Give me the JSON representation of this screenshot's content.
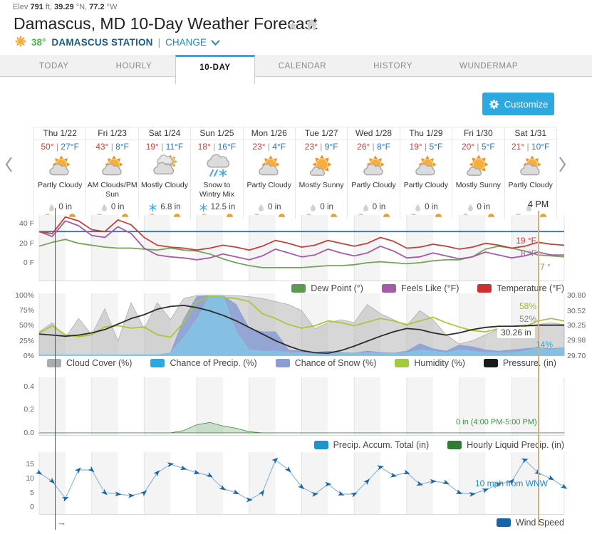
{
  "header": {
    "elev_label": "Elev",
    "elev_value": "791",
    "elev_unit": "ft,",
    "lat_value": "39.29",
    "lat_unit": "°N,",
    "lon_value": "77.2",
    "lon_unit": "°W",
    "title": "Damascus, MD 10-Day Weather Forecast",
    "station": {
      "temp": "38°",
      "name": "DAMASCUS STATION",
      "divider": "|",
      "change_label": "CHANGE"
    }
  },
  "tabs": [
    {
      "label": "TODAY",
      "active": false
    },
    {
      "label": "HOURLY",
      "active": false
    },
    {
      "label": "10-DAY",
      "active": true
    },
    {
      "label": "CALENDAR",
      "active": false
    },
    {
      "label": "HISTORY",
      "active": false
    },
    {
      "label": "WUNDERMAP",
      "active": false
    }
  ],
  "customize": {
    "label": "Customize"
  },
  "forecast_days": [
    {
      "day": "Thu 1/22",
      "high": "50°",
      "low": "27°F",
      "condition": "Partly Cloudy",
      "icon": "partly-cloudy",
      "precip_icon": "drop",
      "precip": "0 in"
    },
    {
      "day": "Fri 1/23",
      "high": "43°",
      "low": "8°F",
      "condition": "AM Clouds/PM Sun",
      "icon": "partly-cloudy",
      "precip_icon": "drop",
      "precip": "0 in"
    },
    {
      "day": "Sat 1/24",
      "high": "19°",
      "low": "11°F",
      "condition": "Mostly Cloudy",
      "icon": "mostly-cloudy",
      "precip_icon": "snow",
      "precip": "6.8 in"
    },
    {
      "day": "Sun 1/25",
      "high": "18°",
      "low": "16°F",
      "condition": "Snow to Wintry Mix",
      "icon": "snow-wintry",
      "precip_icon": "snow",
      "precip": "12.5 in"
    },
    {
      "day": "Mon 1/26",
      "high": "23°",
      "low": "4°F",
      "condition": "Partly Cloudy",
      "icon": "partly-cloudy",
      "precip_icon": "drop",
      "precip": "0 in"
    },
    {
      "day": "Tue 1/27",
      "high": "23°",
      "low": "9°F",
      "condition": "Mostly Sunny",
      "icon": "mostly-sunny",
      "precip_icon": "drop",
      "precip": "0 in"
    },
    {
      "day": "Wed 1/28",
      "high": "26°",
      "low": "8°F",
      "condition": "Partly Cloudy",
      "icon": "partly-cloudy",
      "precip_icon": "drop",
      "precip": "0 in"
    },
    {
      "day": "Thu 1/29",
      "high": "19°",
      "low": "5°F",
      "condition": "Partly Cloudy",
      "icon": "partly-cloudy",
      "precip_icon": "drop",
      "precip": "0 in"
    },
    {
      "day": "Fri 1/30",
      "high": "20°",
      "low": "5°F",
      "condition": "Mostly Sunny",
      "icon": "mostly-sunny",
      "precip_icon": "drop",
      "precip": "0 in"
    },
    {
      "day": "Sat 1/31",
      "high": "21°",
      "low": "10°F",
      "condition": "Partly Cloudy",
      "icon": "partly-cloudy",
      "precip_icon": "drop",
      "precip": ""
    }
  ],
  "cursor": {
    "time": "4 PM",
    "temperature": "19 °F",
    "feels_like": "8 °F",
    "dew_point": "7 °",
    "humidity": "58%",
    "cloud_cover": "52%",
    "pressure": "30.26 in",
    "chance_snow": "14%",
    "hourly_precip": "0 in (4:00 PM-5:00 PM)",
    "wind": "10 mph from WNW",
    "bottom_arrow": "→"
  },
  "chart_data": [
    {
      "id": "temperature",
      "type": "line",
      "x_step": 0.25,
      "ylim": [
        -19,
        49
      ],
      "yticks": [
        {
          "v": 40,
          "label": "40 F"
        },
        {
          "v": 20,
          "label": "20 F"
        },
        {
          "v": 0,
          "label": "0 F"
        }
      ],
      "reference_line": 32,
      "series": [
        {
          "name": "Dew Point (°)",
          "color": "#74A45E",
          "values": [
            17,
            21,
            24,
            20,
            18,
            16,
            15,
            15,
            14,
            13,
            15,
            13,
            12,
            9,
            4,
            0,
            -3,
            -5,
            -5,
            -5,
            -5,
            -4,
            -3,
            -3,
            -2,
            0,
            1,
            0,
            -1,
            0,
            2,
            3,
            3,
            6,
            14,
            17,
            15,
            12,
            8,
            7,
            6
          ]
        },
        {
          "name": "Feels Like (°F)",
          "color": "#A55BA5",
          "values": [
            32,
            27,
            43,
            38,
            28,
            26,
            37,
            30,
            15,
            8,
            6,
            5,
            3,
            5,
            9,
            6,
            3,
            7,
            14,
            10,
            6,
            8,
            14,
            10,
            7,
            10,
            17,
            12,
            5,
            6,
            10,
            7,
            4,
            6,
            11,
            8,
            5,
            7,
            11,
            8,
            8
          ]
        },
        {
          "name": "Temperature (°F)",
          "color": "#C5413C",
          "values": [
            32,
            30,
            47,
            43,
            34,
            32,
            44,
            39,
            26,
            18,
            16,
            15,
            13,
            15,
            18,
            16,
            13,
            17,
            23,
            20,
            16,
            18,
            23,
            20,
            17,
            20,
            26,
            22,
            15,
            16,
            19,
            17,
            14,
            16,
            20,
            18,
            15,
            17,
            21,
            19,
            18
          ]
        }
      ],
      "legend": [
        {
          "label": "Dew Point (°)",
          "color": "#5C9B4F"
        },
        {
          "label": "Feels Like (°F)",
          "color": "#A55BA5"
        },
        {
          "label": "Temperature (°F)",
          "color": "#CE2F2F"
        }
      ]
    },
    {
      "id": "conditions",
      "type": "area",
      "x_step": 0.25,
      "ylim": [
        0,
        103.5
      ],
      "yticks": [
        {
          "v": 100,
          "label": "100%"
        },
        {
          "v": 75,
          "label": "75%"
        },
        {
          "v": 50,
          "label": "50%"
        },
        {
          "v": 25,
          "label": "25%"
        },
        {
          "v": 0,
          "label": "0%"
        }
      ],
      "right_yticks": [
        {
          "p": 30.8,
          "label": "30.80"
        },
        {
          "p": 30.52,
          "label": "30.52"
        },
        {
          "p": 30.25,
          "label": "30.25"
        },
        {
          "p": 29.98,
          "label": "29.98"
        },
        {
          "p": 29.7,
          "label": "29.70"
        }
      ],
      "pressure_scale": [
        29.7,
        30.8
      ],
      "series": [
        {
          "name": "Cloud Cover (%)",
          "kind": "area",
          "fill": "rgba(176,176,176,0.5)",
          "color": "#AFAFAF",
          "values": [
            40,
            55,
            30,
            62,
            35,
            78,
            25,
            88,
            45,
            88,
            60,
            95,
            100,
            100,
            100,
            100,
            98,
            95,
            90,
            85,
            75,
            45,
            55,
            60,
            55,
            85,
            70,
            60,
            50,
            75,
            60,
            35,
            20,
            25,
            35,
            45,
            40,
            50,
            52,
            55,
            52
          ]
        },
        {
          "name": "Chance of Snow (%)",
          "kind": "area",
          "fill": "rgba(138,157,211,0.85)",
          "color": "#8A9DD3",
          "values": [
            0,
            0,
            0,
            0,
            0,
            0,
            0,
            2,
            2,
            2,
            5,
            60,
            98,
            100,
            100,
            85,
            45,
            40,
            40,
            10,
            8,
            6,
            8,
            6,
            5,
            8,
            6,
            5,
            8,
            20,
            12,
            8,
            18,
            15,
            10,
            8,
            10,
            12,
            14,
            12,
            14
          ]
        },
        {
          "name": "Chance of Precip. (%)",
          "kind": "area",
          "fill": "rgba(127,203,232,0.7)",
          "color": "#7FCBE8",
          "values": [
            2,
            2,
            2,
            2,
            2,
            2,
            2,
            2,
            2,
            2,
            5,
            30,
            60,
            100,
            100,
            40,
            10,
            8,
            8,
            5,
            5,
            5,
            5,
            5,
            5,
            5,
            5,
            5,
            5,
            10,
            8,
            5,
            10,
            8,
            5,
            5,
            5,
            8,
            14,
            10,
            14
          ]
        },
        {
          "name": "Humidity (%)",
          "kind": "line",
          "color": "#A8C83C",
          "values": [
            38,
            50,
            35,
            32,
            35,
            48,
            50,
            46,
            48,
            35,
            31,
            55,
            90,
            98,
            97,
            95,
            90,
            70,
            62,
            52,
            46,
            50,
            58,
            55,
            50,
            56,
            62,
            58,
            52,
            58,
            64,
            55,
            48,
            42,
            40,
            45,
            42,
            48,
            58,
            62,
            58
          ]
        },
        {
          "name": "Pressure. (in)",
          "kind": "line",
          "axis": "pressure",
          "color": "#2B2B2B",
          "values": [
            30.1,
            30.08,
            30.06,
            30.08,
            30.12,
            30.18,
            30.28,
            30.38,
            30.45,
            30.55,
            30.6,
            30.62,
            30.58,
            30.52,
            30.44,
            30.34,
            30.22,
            30.1,
            29.98,
            29.88,
            29.8,
            29.76,
            29.75,
            29.8,
            29.88,
            29.97,
            30.06,
            30.14,
            30.2,
            30.18,
            30.12,
            30.08,
            30.12,
            30.18,
            30.22,
            30.24,
            30.24,
            30.25,
            30.26,
            30.26,
            30.26
          ]
        }
      ],
      "legend": [
        {
          "label": "Cloud Cover (%)",
          "color": "#AAACAD"
        },
        {
          "label": "Chance of Precip. (%)",
          "color": "#29A9E0"
        },
        {
          "label": "Chance of Snow (%)",
          "color": "#8A9DD3"
        },
        {
          "label": "Humidity (%)",
          "color": "#A4C93F"
        },
        {
          "label": "Pressure. (in)",
          "color": "#1A1A1A"
        }
      ]
    },
    {
      "id": "precip",
      "type": "area",
      "x_step": 0.25,
      "ylim": [
        -0.025,
        0.48
      ],
      "yticks": [
        {
          "v": 0.4,
          "label": "0.4"
        },
        {
          "v": 0.2,
          "label": "0.2"
        },
        {
          "v": 0,
          "label": "0.0"
        }
      ],
      "series": [
        {
          "name": "Hourly Liquid Precip. (in)",
          "kind": "area",
          "fill": "rgba(120,175,120,0.35)",
          "color": "#3E8E41",
          "values": [
            0,
            0,
            0,
            0,
            0,
            0,
            0,
            0,
            0,
            0,
            0,
            0.02,
            0.07,
            0.09,
            0.06,
            0.04,
            0.01,
            0,
            0,
            0,
            0,
            0,
            0,
            0,
            0,
            0,
            0,
            0,
            0,
            0,
            0,
            0,
            0,
            0,
            0,
            0,
            0,
            0,
            0,
            0,
            0
          ]
        }
      ],
      "legend": [
        {
          "label": "Precip. Accum. Total (in)",
          "color": "#1D94CE"
        },
        {
          "label": "Hourly Liquid Precip. (in)",
          "color": "#2E7D32"
        }
      ]
    },
    {
      "id": "wind",
      "type": "line",
      "x_step": 0.25,
      "ylim": [
        -2.75,
        19.25
      ],
      "yticks": [
        {
          "v": 15,
          "label": "15"
        },
        {
          "v": 10,
          "label": "10"
        },
        {
          "v": 5,
          "label": "5"
        },
        {
          "v": 0,
          "label": "0"
        }
      ],
      "series": [
        {
          "name": "Wind Speed",
          "kind": "line",
          "color": "#8FB8D8",
          "marker": "arrow",
          "marker_color": "#1565A8",
          "values": [
            12,
            9,
            3,
            13,
            13,
            5,
            4.5,
            4,
            5,
            12,
            15,
            13.5,
            12,
            11,
            6.5,
            5,
            2.5,
            5,
            16.5,
            13,
            7,
            4.5,
            8,
            4.5,
            4.5,
            9,
            14,
            11,
            12,
            8,
            9,
            8.5,
            5,
            4.5,
            6,
            8,
            9,
            16.5,
            12,
            10,
            7
          ]
        }
      ],
      "legend": [
        {
          "label": "Wind Speed",
          "color": "#1565A8"
        }
      ]
    }
  ]
}
